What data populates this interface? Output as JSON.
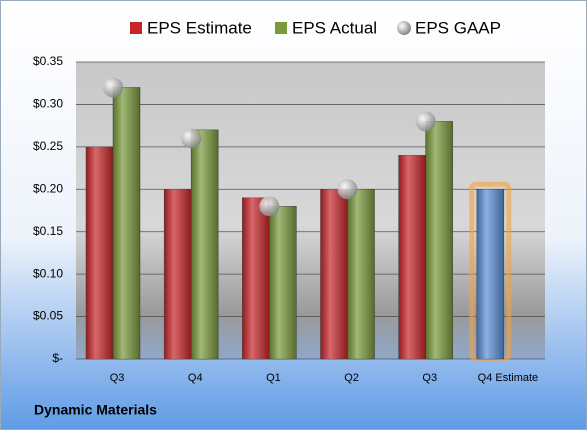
{
  "chart_data": {
    "type": "bar",
    "categories": [
      "Q3",
      "Q4",
      "Q1",
      "Q2",
      "Q3",
      "Q4 Estimate"
    ],
    "series": [
      {
        "name": "EPS Estimate",
        "color": "#c8262b",
        "point_colors": [
          "#c8262b",
          "#c8262b",
          "#c8262b",
          "#c8262b",
          "#c8262b",
          "#5b8fd6"
        ],
        "values": [
          0.25,
          0.2,
          0.19,
          0.2,
          0.24,
          0.2
        ]
      },
      {
        "name": "EPS Actual",
        "color": "#7a9a3c",
        "values": [
          0.32,
          0.27,
          0.18,
          0.2,
          0.28,
          null
        ]
      },
      {
        "name": "EPS GAAP",
        "color": "#b0b0b0",
        "type": "scatter",
        "values": [
          0.32,
          0.26,
          0.18,
          0.2,
          0.28,
          null
        ]
      }
    ],
    "ylim": [
      0,
      0.35
    ],
    "yticks": [
      {
        "value": 0,
        "label": "$-"
      },
      {
        "value": 0.05,
        "label": "$0.05"
      },
      {
        "value": 0.1,
        "label": "$0.10"
      },
      {
        "value": 0.15,
        "label": "$0.15"
      },
      {
        "value": 0.2,
        "label": "$0.20"
      },
      {
        "value": 0.25,
        "label": "$0.25"
      },
      {
        "value": 0.3,
        "label": "$0.30"
      },
      {
        "value": 0.35,
        "label": "$0.35"
      }
    ],
    "grid": true,
    "footer": "Dynamic Materials"
  }
}
